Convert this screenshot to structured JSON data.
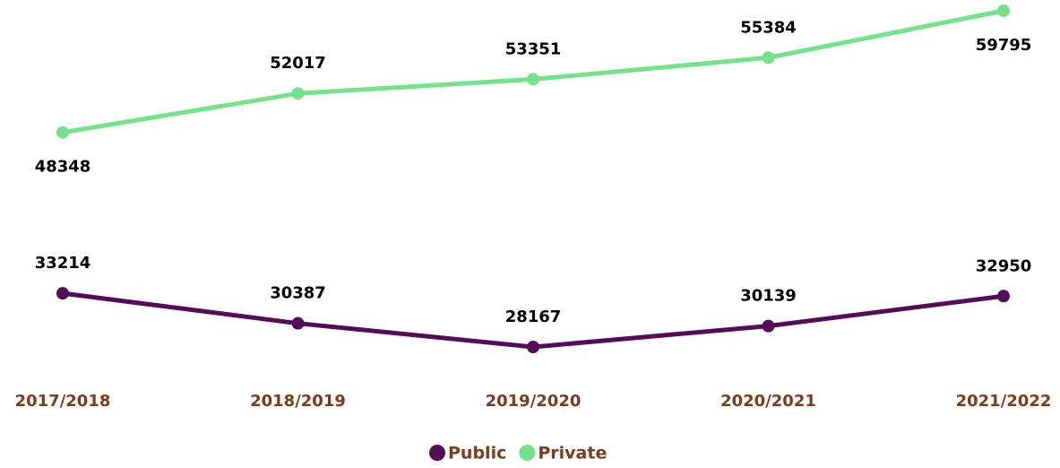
{
  "chart_data": {
    "type": "line",
    "categories": [
      "2017/2018",
      "2018/2019",
      "2019/2020",
      "2020/2021",
      "2021/2022"
    ],
    "series": [
      {
        "name": "Public",
        "color": "#560b57",
        "values": [
          33214,
          30387,
          28167,
          30139,
          32950
        ]
      },
      {
        "name": "Private",
        "color": "#76e08a",
        "values": [
          48348,
          52017,
          53351,
          55384,
          59795
        ]
      }
    ]
  }
}
